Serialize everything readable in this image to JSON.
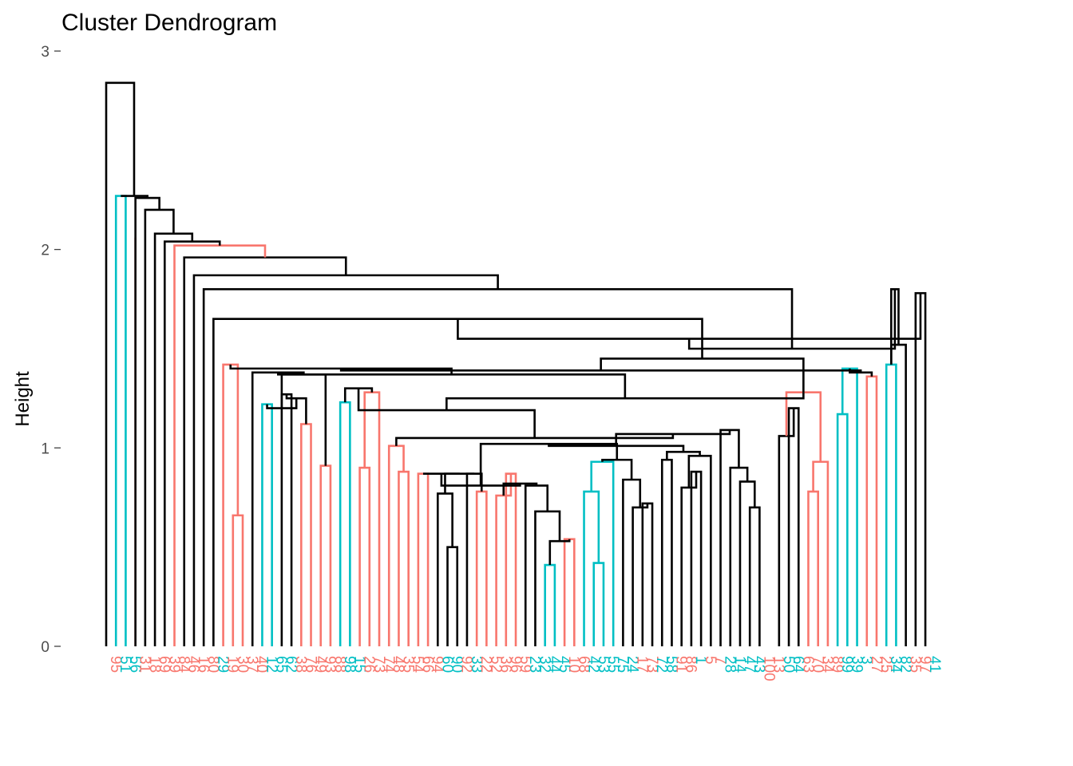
{
  "chart_data": {
    "type": "dendrogram",
    "title": "Cluster Dendrogram",
    "xlabel": "",
    "ylabel": "Height",
    "ylim": [
      0,
      3
    ],
    "y_ticks": [
      0,
      1,
      2,
      3
    ],
    "grid": false,
    "colors": {
      "group1": "#F8766D",
      "group2": "#00BFC4",
      "inner": "#000000"
    },
    "leaves": [
      {
        "label": "95",
        "g": 1
      },
      {
        "label": "51",
        "g": 2
      },
      {
        "label": "56",
        "g": 2
      },
      {
        "label": "31",
        "g": 1
      },
      {
        "label": "18",
        "g": 1
      },
      {
        "label": "69",
        "g": 1
      },
      {
        "label": "39",
        "g": 1
      },
      {
        "label": "84",
        "g": 1
      },
      {
        "label": "46",
        "g": 1
      },
      {
        "label": "16",
        "g": 1
      },
      {
        "label": "80",
        "g": 1
      },
      {
        "label": "29",
        "g": 2
      },
      {
        "label": "19",
        "g": 1
      },
      {
        "label": "30",
        "g": 1
      },
      {
        "label": "37",
        "g": 1
      },
      {
        "label": "40",
        "g": 1
      },
      {
        "label": "12",
        "g": 2
      },
      {
        "label": "65",
        "g": 2
      },
      {
        "label": "62",
        "g": 2
      },
      {
        "label": "38",
        "g": 1
      },
      {
        "label": "76",
        "g": 1
      },
      {
        "label": "49",
        "g": 1
      },
      {
        "label": "93",
        "g": 1
      },
      {
        "label": "88",
        "g": 1
      },
      {
        "label": "98",
        "g": 2
      },
      {
        "label": "15",
        "g": 2
      },
      {
        "label": "26",
        "g": 1
      },
      {
        "label": "73",
        "g": 1
      },
      {
        "label": "74",
        "g": 1
      },
      {
        "label": "48",
        "g": 1
      },
      {
        "label": "35",
        "g": 1
      },
      {
        "label": "54",
        "g": 1
      },
      {
        "label": "66",
        "g": 1
      },
      {
        "label": "94",
        "g": 1
      },
      {
        "label": "60",
        "g": 2
      },
      {
        "label": "90",
        "g": 2
      },
      {
        "label": "92",
        "g": 1
      },
      {
        "label": "33",
        "g": 2
      },
      {
        "label": "22",
        "g": 1
      },
      {
        "label": "52",
        "g": 1
      },
      {
        "label": "36",
        "g": 1
      },
      {
        "label": "96",
        "g": 1
      },
      {
        "label": "59",
        "g": 1
      },
      {
        "label": "23",
        "g": 2
      },
      {
        "label": "32",
        "g": 2
      },
      {
        "label": "44",
        "g": 2
      },
      {
        "label": "45",
        "g": 2
      },
      {
        "label": "10",
        "g": 1
      },
      {
        "label": "68",
        "g": 1
      },
      {
        "label": "42",
        "g": 2
      },
      {
        "label": "53",
        "g": 2
      },
      {
        "label": "55",
        "g": 2
      },
      {
        "label": "75",
        "g": 2
      },
      {
        "label": "24",
        "g": 2
      },
      {
        "label": "17",
        "g": 1
      },
      {
        "label": "73",
        "g": 1
      },
      {
        "label": "72",
        "g": 2
      },
      {
        "label": "58",
        "g": 2
      },
      {
        "label": "91",
        "g": 1
      },
      {
        "label": "86",
        "g": 1
      },
      {
        "label": "1",
        "g": 2
      },
      {
        "label": "5",
        "g": 1
      },
      {
        "label": "7",
        "g": 1
      },
      {
        "label": "28",
        "g": 2
      },
      {
        "label": "14",
        "g": 2
      },
      {
        "label": "47",
        "g": 2
      },
      {
        "label": "43",
        "g": 2
      },
      {
        "label": "100",
        "g": 1
      },
      {
        "label": "13",
        "g": 1
      },
      {
        "label": "50",
        "g": 2
      },
      {
        "label": "64",
        "g": 2
      },
      {
        "label": "63",
        "g": 1
      },
      {
        "label": "70",
        "g": 1
      },
      {
        "label": "34",
        "g": 1
      },
      {
        "label": "89",
        "g": 1
      },
      {
        "label": "99",
        "g": 2
      },
      {
        "label": "39",
        "g": 2
      },
      {
        "label": "3",
        "g": 2
      },
      {
        "label": "27",
        "g": 1
      },
      {
        "label": "25",
        "g": 1
      },
      {
        "label": "34",
        "g": 2
      },
      {
        "label": "82",
        "g": 2
      },
      {
        "label": "35",
        "g": 1
      },
      {
        "label": "97",
        "g": 1
      },
      {
        "label": "41",
        "g": 2
      }
    ]
  }
}
